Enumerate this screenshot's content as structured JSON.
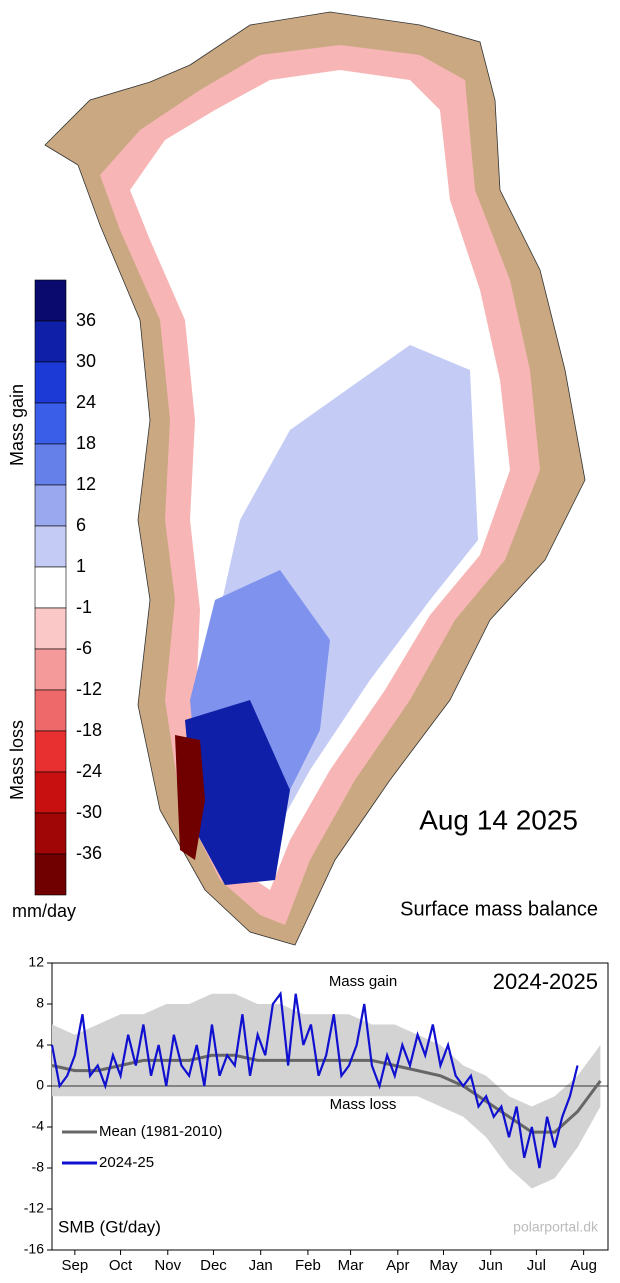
{
  "map": {
    "date": "Aug 14 2025",
    "title": "Surface mass balance",
    "gain_label": "Mass gain",
    "loss_label": "Mass loss",
    "colorbar": {
      "unit": "mm/day",
      "labels": [
        36,
        30,
        24,
        18,
        12,
        6,
        1,
        -1,
        -6,
        -12,
        -18,
        -24,
        -30,
        -36
      ],
      "colors": [
        "#0a0a6e",
        "#0f1fa8",
        "#1c3bd6",
        "#3a5ee8",
        "#6680ea",
        "#9aa8f0",
        "#c4ccf6",
        "#ffffff",
        "#fbc8c8",
        "#f59a9a",
        "#ee6a6a",
        "#e83030",
        "#c81010",
        "#a00606",
        "#700000"
      ]
    }
  },
  "chart_data": {
    "type": "line",
    "title": "2024-2025",
    "ylabel": "SMB (Gt/day)",
    "gain_label": "Mass gain",
    "loss_label": "Mass loss",
    "credit": "polarportal.dk",
    "xlim": [
      0,
      365
    ],
    "xticks": [
      {
        "value": 15,
        "label": "Sep"
      },
      {
        "value": 45,
        "label": "Oct"
      },
      {
        "value": 76,
        "label": "Nov"
      },
      {
        "value": 106,
        "label": "Dec"
      },
      {
        "value": 137,
        "label": "Jan"
      },
      {
        "value": 168,
        "label": "Feb"
      },
      {
        "value": 196,
        "label": "Mar"
      },
      {
        "value": 227,
        "label": "Apr"
      },
      {
        "value": 257,
        "label": "May"
      },
      {
        "value": 288,
        "label": "Jun"
      },
      {
        "value": 318,
        "label": "Jul"
      },
      {
        "value": 349,
        "label": "Aug"
      }
    ],
    "ylim": [
      -16,
      12
    ],
    "yticks": [
      -16,
      -12,
      -8,
      -4,
      0,
      4,
      8,
      12
    ],
    "band": {
      "color": "#d3d3d3",
      "x": [
        0,
        15,
        30,
        45,
        60,
        75,
        90,
        105,
        120,
        135,
        150,
        165,
        180,
        195,
        210,
        225,
        240,
        255,
        270,
        285,
        300,
        315,
        330,
        345,
        360
      ],
      "high": [
        6,
        5,
        6,
        7,
        7,
        8,
        8,
        9,
        9,
        8,
        8,
        7,
        7,
        7,
        6,
        6,
        5,
        4,
        2,
        1,
        -1,
        -2,
        -1,
        1,
        4
      ],
      "low": [
        -1,
        -1,
        -1,
        -1,
        -1,
        -1,
        -1,
        -1,
        -1,
        -1,
        -1,
        -1,
        -1,
        -1,
        -1,
        -1,
        -1,
        -2,
        -3,
        -5,
        -8,
        -10,
        -9,
        -6,
        -2
      ]
    },
    "series": [
      {
        "name": "Mean (1981-2010)",
        "color": "#666666",
        "x": [
          0,
          15,
          30,
          45,
          60,
          75,
          90,
          105,
          120,
          135,
          150,
          165,
          180,
          195,
          210,
          225,
          240,
          255,
          270,
          285,
          300,
          315,
          330,
          345,
          360
        ],
        "values": [
          2,
          1.5,
          1.5,
          2,
          2.5,
          2.5,
          2.5,
          3,
          3,
          2.5,
          2.5,
          2.5,
          2.5,
          2.5,
          2.5,
          2,
          1.5,
          1,
          0,
          -1.5,
          -3,
          -4.5,
          -4.5,
          -2.5,
          0.5
        ]
      },
      {
        "name": "2024-25",
        "color": "#1010d0",
        "x": [
          0,
          5,
          10,
          15,
          20,
          25,
          30,
          35,
          40,
          45,
          50,
          55,
          60,
          65,
          70,
          75,
          80,
          85,
          90,
          95,
          100,
          105,
          110,
          115,
          120,
          125,
          130,
          135,
          140,
          145,
          150,
          155,
          160,
          165,
          170,
          175,
          180,
          185,
          190,
          195,
          200,
          205,
          210,
          215,
          220,
          225,
          230,
          235,
          240,
          245,
          250,
          255,
          260,
          265,
          270,
          275,
          280,
          285,
          290,
          295,
          300,
          305,
          310,
          315,
          320,
          325,
          330,
          335,
          340,
          345
        ],
        "values": [
          4,
          0,
          1,
          3,
          7,
          1,
          2,
          0,
          3,
          1,
          5,
          2,
          6,
          1,
          4,
          0,
          5,
          2,
          1,
          4,
          0,
          6,
          1,
          3,
          2,
          7,
          1,
          5,
          3,
          8,
          9,
          2,
          9,
          4,
          6,
          1,
          3,
          7,
          1,
          2,
          4,
          8,
          2,
          0,
          3,
          1,
          4,
          2,
          5,
          3,
          6,
          2,
          4,
          1,
          0,
          1,
          -2,
          -1,
          -3,
          -2,
          -5,
          -2,
          -7,
          -4,
          -8,
          -3,
          -6,
          -3,
          -1,
          2
        ]
      }
    ],
    "legend": "lower left"
  }
}
